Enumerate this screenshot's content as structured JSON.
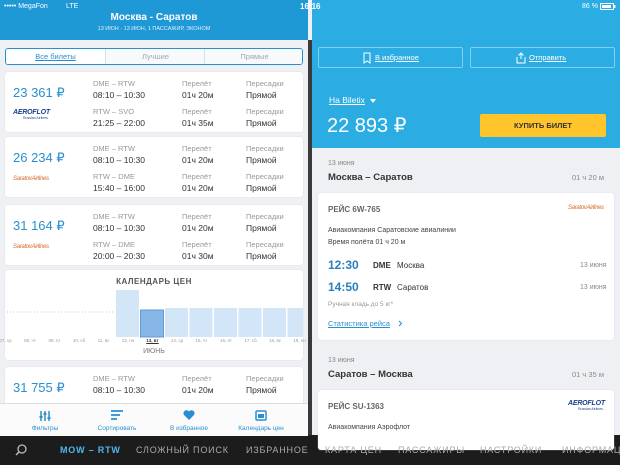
{
  "status": {
    "carrier": "••••• MegaFon",
    "network": "LTE",
    "time": "16:16",
    "battery": "86 %"
  },
  "search": {
    "title": "Москва - Саратов",
    "subtitle": "13 ИЮН - 13 ИЮН, 1 ПАССАЖИР, ЭКОНОМ"
  },
  "filters": [
    "Все билеты",
    "Лучшие",
    "Прямые"
  ],
  "column_labels": {
    "duration": "Перелёт",
    "stops": "Пересадки"
  },
  "tickets": [
    {
      "price": "23 361 ₽",
      "logo": {
        "name": "AEROFLOT",
        "tagline": "Russian Airlines"
      },
      "segments": [
        {
          "route": "DME – RTW",
          "time": "08:10 – 10:30",
          "duration": "01ч 20м",
          "stops": "Прямой"
        },
        {
          "route": "RTW – SVO",
          "time": "21:25 – 22:00",
          "duration": "01ч 35м",
          "stops": "Прямой"
        }
      ]
    },
    {
      "price": "26 234 ₽",
      "logo": {
        "name": "SaratovAirlines"
      },
      "segments": [
        {
          "route": "DME – RTW",
          "time": "08:10 – 10:30",
          "duration": "01ч 20м",
          "stops": "Прямой"
        },
        {
          "route": "RTW – DME",
          "time": "15:40 – 16:00",
          "duration": "01ч 20м",
          "stops": "Прямой"
        }
      ]
    },
    {
      "price": "31 164 ₽",
      "logo": {
        "name": "SaratovAirlines"
      },
      "segments": [
        {
          "route": "DME – RTW",
          "time": "08:10 – 10:30",
          "duration": "01ч 20м",
          "stops": "Прямой"
        },
        {
          "route": "RTW – DME",
          "time": "20:00 – 20:30",
          "duration": "01ч 30м",
          "stops": "Прямой"
        }
      ]
    },
    {
      "price": "31 755 ₽",
      "logo": {
        "name": "AEROFLOT",
        "tagline": "Russian Airlines"
      },
      "segments": [
        {
          "route": "DME – RTW",
          "time": "08:10 – 10:30",
          "duration": "01ч 20м",
          "stops": "Прямой"
        }
      ]
    }
  ],
  "calendar": {
    "title": "КАЛЕНДАРЬ ЦЕН",
    "days": [
      "07, ср",
      "08, чт",
      "09, пт",
      "10, сб",
      "11, вс",
      "12, пн",
      "13, вт",
      "14, ср",
      "15, чт",
      "16, пт",
      "17, сб",
      "18, вс",
      "19, пн"
    ],
    "month": "ИЮНЬ"
  },
  "tabs": [
    "Фильтры",
    "Сортировать",
    "В избранное",
    "Календарь цен"
  ],
  "details": {
    "actions": [
      "В избранное",
      "Отправить"
    ],
    "agency": "На Biletix",
    "price": "22 893 ₽",
    "buy": "КУПИТЬ БИЛЕТ",
    "legs": [
      {
        "date": "13 июня",
        "route": "Москва – Саратов",
        "duration": "01 ч 20 м",
        "flight": "РЕЙС 6W-765",
        "logo": {
          "name": "SaratovAirlines"
        },
        "airline": "Авиакомпания Саратовские авиалинии",
        "flight_time": "Время полёта 01 ч 20 м",
        "departure": {
          "time": "12:30",
          "code": "DME",
          "city": "Москва",
          "date": "13 июня"
        },
        "arrival": {
          "time": "14:50",
          "code": "RTW",
          "city": "Саратов",
          "date": "13 июня"
        },
        "baggage": "Ручная кладь до 5 кг*",
        "stats": "Статистика рейса"
      },
      {
        "date": "13 июня",
        "route": "Саратов – Москва",
        "duration": "01 ч 35 м",
        "flight": "РЕЙС SU-1363",
        "logo": {
          "name": "AEROFLOT",
          "tagline": "Russian Airlines"
        },
        "airline": "Авиакомпания Аэрофлот"
      }
    ]
  },
  "bottom_nav": [
    "MOW – RTW",
    "СЛОЖНЫЙ ПОИСК",
    "ИЗБРАННОЕ",
    "КАРТА ЦЕН",
    "ПАССАЖИРЫ",
    "НАСТРОЙКИ",
    "ИНФОРМАЦИЯ"
  ]
}
